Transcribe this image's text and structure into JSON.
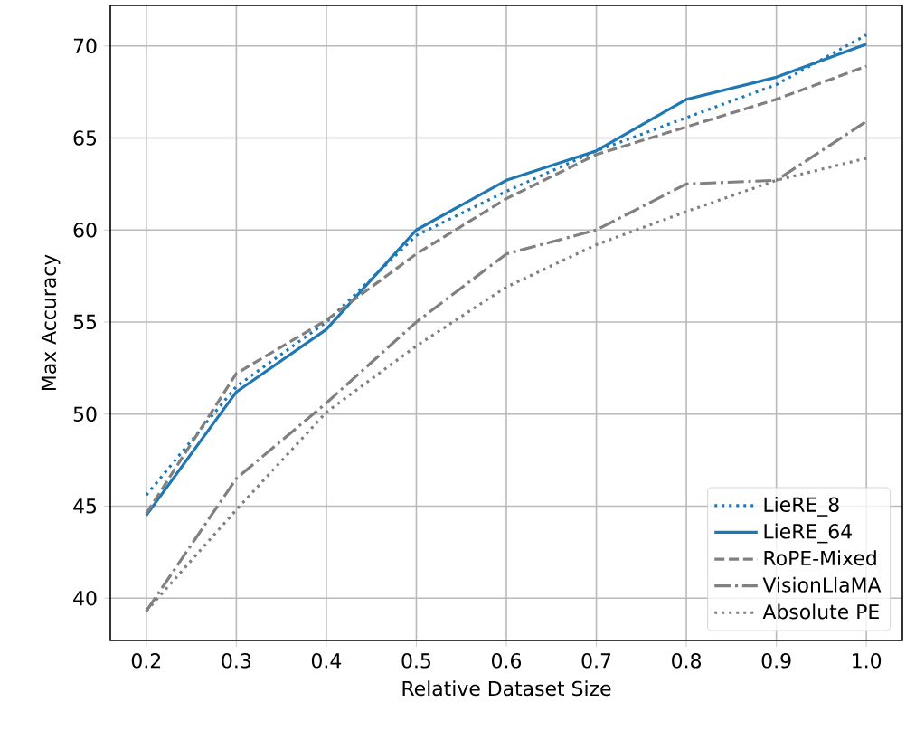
{
  "chart_data": {
    "type": "line",
    "xlabel": "Relative Dataset Size",
    "ylabel": "Max Accuracy",
    "x": [
      0.2,
      0.3,
      0.4,
      0.5,
      0.6,
      0.7,
      0.8,
      0.9,
      1.0
    ],
    "series": [
      {
        "name": "LieRE_8",
        "color": "#1f77b4",
        "line_style": "dotted",
        "values": [
          45.6,
          51.5,
          55.0,
          59.7,
          62.1,
          64.3,
          66.1,
          67.9,
          70.6
        ]
      },
      {
        "name": "LieRE_64",
        "color": "#1f77b4",
        "line_style": "solid",
        "values": [
          44.5,
          51.2,
          54.6,
          60.0,
          62.7,
          64.3,
          67.1,
          68.3,
          70.1
        ]
      },
      {
        "name": "RoPE-Mixed",
        "color": "#808080",
        "line_style": "dashed",
        "values": [
          44.6,
          52.2,
          55.1,
          58.7,
          61.7,
          64.1,
          65.6,
          67.1,
          68.9
        ]
      },
      {
        "name": "VisionLlaMA",
        "color": "#808080",
        "line_style": "dashdot",
        "values": [
          39.3,
          46.5,
          50.6,
          55.0,
          58.7,
          60.0,
          62.5,
          62.7,
          65.9
        ]
      },
      {
        "name": "Absolute PE",
        "color": "#808080",
        "line_style": "dotted",
        "values": [
          39.3,
          44.8,
          50.1,
          53.7,
          56.9,
          59.2,
          61.0,
          62.7,
          63.9
        ]
      }
    ],
    "xlim": [
      0.16,
      1.04
    ],
    "ylim": [
      37.7,
      72.2
    ],
    "xticks": [
      0.2,
      0.3,
      0.4,
      0.5,
      0.6,
      0.7,
      0.8,
      0.9,
      {
        "value": 1.0,
        "label": "1.0"
      }
    ],
    "yticks": [
      40,
      45,
      50,
      55,
      60,
      65,
      70
    ],
    "grid": true,
    "legend": "bottom right",
    "marker": "none"
  }
}
